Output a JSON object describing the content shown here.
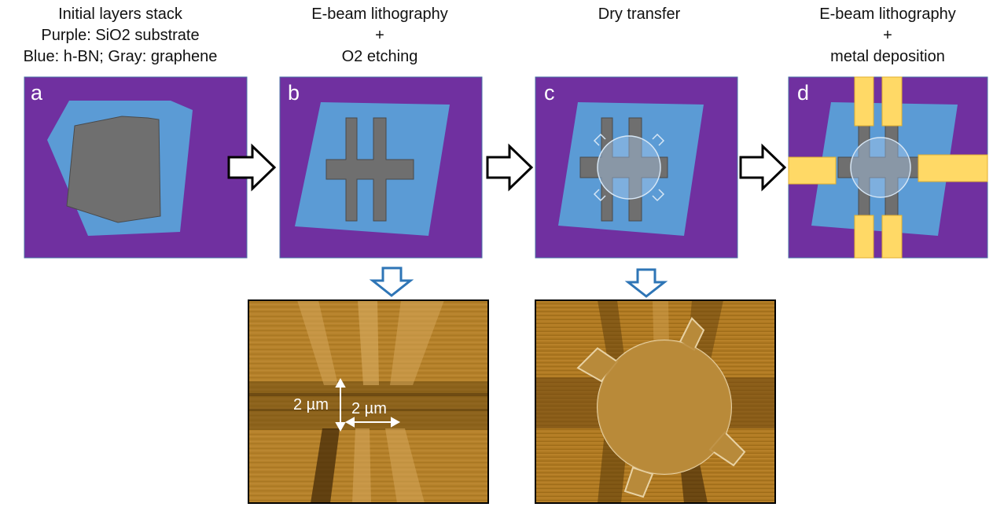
{
  "steps": [
    {
      "label": "a",
      "caption": [
        "Initial layers stack",
        "Purple: SiO2 substrate",
        "Blue: h-BN; Gray: graphene"
      ]
    },
    {
      "label": "b",
      "caption": [
        "E-beam lithography",
        "+",
        "O2 etching"
      ]
    },
    {
      "label": "c",
      "caption": [
        "Dry transfer"
      ]
    },
    {
      "label": "d",
      "caption": [
        "E-beam lithography",
        "+",
        "metal deposition"
      ]
    }
  ],
  "scale_bars": {
    "vertical": "2 µm",
    "horizontal": "2 µm"
  },
  "colors": {
    "substrate": "#7030a0",
    "hbn": "#5b9bd5",
    "graphene": "#6f6f6f",
    "metal": "#ffd966",
    "arrow_blue": "#2e75b6",
    "afm_base": "#b07c1c"
  }
}
